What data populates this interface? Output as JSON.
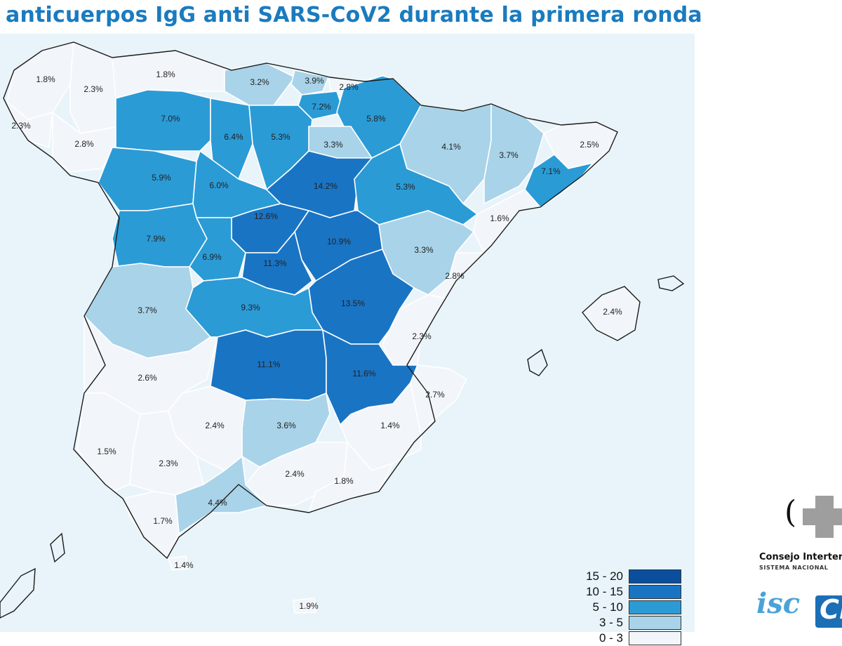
{
  "title": "anticuerpos IgG anti SARS-CoV2 durante la primera ronda",
  "colors": {
    "background": "#e8f4f9",
    "title": "#1a7bbf",
    "c0_3": "#f2f6fa",
    "c3_5": "#a9d3e9",
    "c5_10": "#2b9bd6",
    "c10_15": "#1a74c4",
    "c15_20": "#0b4f9c"
  },
  "legend": [
    {
      "label": "15 - 20",
      "color": "#0b4f9c"
    },
    {
      "label": "10 - 15",
      "color": "#1a74c4"
    },
    {
      "label": "5 - 10",
      "color": "#2b9bd6"
    },
    {
      "label": "3 - 5",
      "color": "#a9d3e9"
    },
    {
      "label": "0 - 3",
      "color": "#f2f6fa"
    }
  ],
  "regions": [
    {
      "name": "A Coruña",
      "value": "1.8%",
      "bin": "c0_3"
    },
    {
      "name": "Lugo",
      "value": "2.3%",
      "bin": "c0_3"
    },
    {
      "name": "Asturias",
      "value": "1.8%",
      "bin": "c0_3"
    },
    {
      "name": "Cantabria",
      "value": "3.2%",
      "bin": "c3_5"
    },
    {
      "name": "Bizkaia",
      "value": "3.9%",
      "bin": "c3_5"
    },
    {
      "name": "Gipuzkoa",
      "value": "2.8%",
      "bin": "c0_3"
    },
    {
      "name": "Araba",
      "value": "7.2%",
      "bin": "c5_10"
    },
    {
      "name": "Navarra",
      "value": "5.8%",
      "bin": "c5_10"
    },
    {
      "name": "Pontevedra",
      "value": "2.3%",
      "bin": "c0_3"
    },
    {
      "name": "Ourense",
      "value": "2.8%",
      "bin": "c0_3"
    },
    {
      "name": "León",
      "value": "7.0%",
      "bin": "c5_10"
    },
    {
      "name": "Palencia",
      "value": "6.4%",
      "bin": "c5_10"
    },
    {
      "name": "Burgos",
      "value": "5.3%",
      "bin": "c5_10"
    },
    {
      "name": "La Rioja",
      "value": "3.3%",
      "bin": "c3_5"
    },
    {
      "name": "Huesca",
      "value": "4.1%",
      "bin": "c3_5"
    },
    {
      "name": "Lleida",
      "value": "3.7%",
      "bin": "c3_5"
    },
    {
      "name": "Girona",
      "value": "2.5%",
      "bin": "c0_3"
    },
    {
      "name": "Barcelona",
      "value": "7.1%",
      "bin": "c5_10"
    },
    {
      "name": "Zamora",
      "value": "5.9%",
      "bin": "c5_10"
    },
    {
      "name": "Valladolid",
      "value": "6.0%",
      "bin": "c5_10"
    },
    {
      "name": "Soria",
      "value": "14.2%",
      "bin": "c10_15"
    },
    {
      "name": "Zaragoza",
      "value": "5.3%",
      "bin": "c5_10"
    },
    {
      "name": "Tarragona",
      "value": "1.6%",
      "bin": "c0_3"
    },
    {
      "name": "Segovia",
      "value": "12.6%",
      "bin": "c10_15"
    },
    {
      "name": "Guadalajara",
      "value": "10.9%",
      "bin": "c10_15"
    },
    {
      "name": "Salamanca",
      "value": "7.9%",
      "bin": "c5_10"
    },
    {
      "name": "Ávila",
      "value": "6.9%",
      "bin": "c5_10"
    },
    {
      "name": "Madrid",
      "value": "11.3%",
      "bin": "c10_15"
    },
    {
      "name": "Teruel",
      "value": "3.3%",
      "bin": "c3_5"
    },
    {
      "name": "Castellón",
      "value": "2.8%",
      "bin": "c0_3"
    },
    {
      "name": "Cuenca",
      "value": "13.5%",
      "bin": "c10_15"
    },
    {
      "name": "Cáceres",
      "value": "3.7%",
      "bin": "c3_5"
    },
    {
      "name": "Toledo",
      "value": "9.3%",
      "bin": "c5_10"
    },
    {
      "name": "Valencia",
      "value": "2.3%",
      "bin": "c0_3"
    },
    {
      "name": "Illes Balears",
      "value": "2.4%",
      "bin": "c0_3"
    },
    {
      "name": "Badajoz",
      "value": "2.6%",
      "bin": "c0_3"
    },
    {
      "name": "Ciudad Real",
      "value": "11.1%",
      "bin": "c10_15"
    },
    {
      "name": "Albacete",
      "value": "11.6%",
      "bin": "c10_15"
    },
    {
      "name": "Alicante",
      "value": "2.7%",
      "bin": "c0_3"
    },
    {
      "name": "Córdoba",
      "value": "2.4%",
      "bin": "c0_3"
    },
    {
      "name": "Jaén",
      "value": "3.6%",
      "bin": "c3_5"
    },
    {
      "name": "Murcia",
      "value": "1.4%",
      "bin": "c0_3"
    },
    {
      "name": "Huelva",
      "value": "1.5%",
      "bin": "c0_3"
    },
    {
      "name": "Sevilla",
      "value": "2.3%",
      "bin": "c0_3"
    },
    {
      "name": "Granada",
      "value": "2.4%",
      "bin": "c0_3"
    },
    {
      "name": "Almería",
      "value": "1.8%",
      "bin": "c0_3"
    },
    {
      "name": "Málaga",
      "value": "4.4%",
      "bin": "c3_5"
    },
    {
      "name": "Cádiz",
      "value": "1.7%",
      "bin": "c0_3"
    },
    {
      "name": "Ceuta",
      "value": "1.4%",
      "bin": "c0_3"
    },
    {
      "name": "Melilla",
      "value": "1.9%",
      "bin": "c0_3"
    }
  ],
  "logo": {
    "paren": "(",
    "name": "Consejo Interter",
    "subtitle": "SISTEMA NACIONAL",
    "isc": "isc",
    "box_text": "Ci"
  }
}
